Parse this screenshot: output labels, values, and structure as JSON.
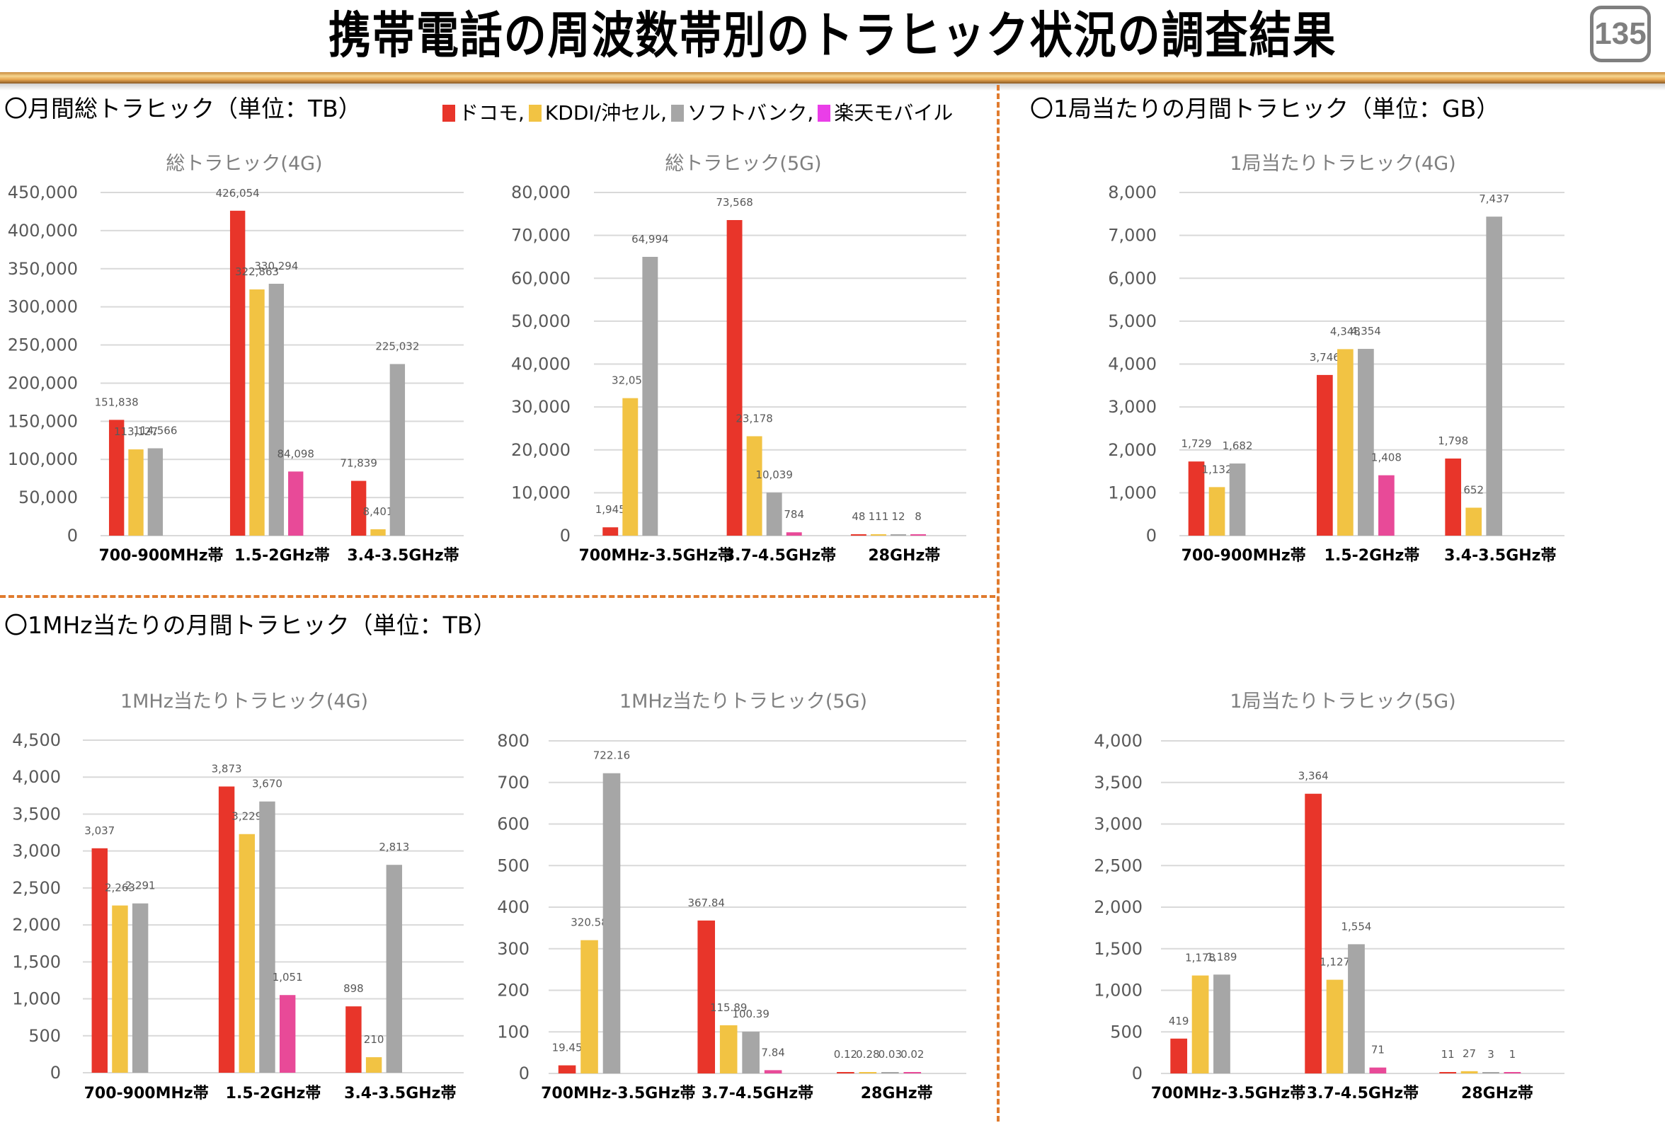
{
  "page": {
    "title": "携帯電話の周波数帯別のトラヒック状況の調査結果",
    "page_number": "135"
  },
  "sections": {
    "monthly_total": "〇月間総トラヒック（単位：TB）",
    "per_station": "〇1局当たりの月間トラヒック（単位：GB）",
    "per_mhz": "〇1MHz当たりの月間トラヒック（単位：TB）"
  },
  "legend": [
    {
      "label": "ドコモ,",
      "color": "#e8352a"
    },
    {
      "label": "KDDI/沖セル,",
      "color": "#f2c343"
    },
    {
      "label": "ソフトバンク,",
      "color": "#a6a6a6"
    },
    {
      "label": "楽天モバイル",
      "color": "#ea3ee8"
    }
  ],
  "series_colors": {
    "docomo": "#e8352a",
    "kddi": "#f2c343",
    "softbank": "#a6a6a6",
    "rakuten": "#e84a98"
  },
  "chart_data": [
    {
      "id": "total-4g",
      "type": "bar",
      "title": "総トラヒック(4G)",
      "xlabel": "",
      "ylabel": "",
      "categories": [
        "700-900MHz帯",
        "1.5-2GHz帯",
        "3.4-3.5GHz帯"
      ],
      "ylim": [
        0,
        450000
      ],
      "yticks": [
        0,
        50000,
        100000,
        150000,
        200000,
        250000,
        300000,
        350000,
        400000,
        450000
      ],
      "ytick_labels": [
        "0",
        "50,000",
        "100,000",
        "150,000",
        "200,000",
        "250,000",
        "300,000",
        "350,000",
        "400,000",
        "450,000"
      ],
      "grid": true,
      "series": [
        {
          "name": "ドコモ",
          "key": "docomo",
          "values": [
            151838,
            426054,
            71839
          ],
          "labels": [
            "151,838",
            "426,054",
            "71,839"
          ]
        },
        {
          "name": "KDDI/沖セル",
          "key": "kddi",
          "values": [
            113127,
            322863,
            8401
          ],
          "labels": [
            "113,127",
            "322,863",
            "8,401"
          ]
        },
        {
          "name": "ソフトバンク",
          "key": "softbank",
          "values": [
            114566,
            330294,
            225032
          ],
          "labels": [
            "114,566",
            "330,294",
            "225,032"
          ]
        },
        {
          "name": "楽天モバイル",
          "key": "rakuten",
          "values": [
            null,
            84098,
            null
          ],
          "labels": [
            null,
            "84,098",
            null
          ]
        }
      ]
    },
    {
      "id": "total-5g",
      "type": "bar",
      "title": "総トラヒック(5G)",
      "xlabel": "",
      "ylabel": "",
      "categories": [
        "700MHz-3.5GHz帯",
        "3.7-4.5GHz帯",
        "28GHz帯"
      ],
      "ylim": [
        0,
        80000
      ],
      "yticks": [
        0,
        10000,
        20000,
        30000,
        40000,
        50000,
        60000,
        70000,
        80000
      ],
      "ytick_labels": [
        "0",
        "10,000",
        "20,000",
        "30,000",
        "40,000",
        "50,000",
        "60,000",
        "70,000",
        "80,000"
      ],
      "grid": true,
      "series": [
        {
          "name": "ドコモ",
          "key": "docomo",
          "values": [
            1945,
            73568,
            48
          ],
          "labels": [
            "1,945",
            "73,568",
            "48"
          ]
        },
        {
          "name": "KDDI/沖セル",
          "key": "kddi",
          "values": [
            32058,
            23178,
            111
          ],
          "labels": [
            "32,058",
            "23,178",
            "111"
          ]
        },
        {
          "name": "ソフトバンク",
          "key": "softbank",
          "values": [
            64994,
            10039,
            12
          ],
          "labels": [
            "64,994",
            "10,039",
            "12"
          ]
        },
        {
          "name": "楽天モバイル",
          "key": "rakuten",
          "values": [
            null,
            784,
            8
          ],
          "labels": [
            null,
            "784",
            "8"
          ]
        }
      ]
    },
    {
      "id": "per-station-4g",
      "type": "bar",
      "title": "1局当たりトラヒック(4G)",
      "xlabel": "",
      "ylabel": "",
      "categories": [
        "700-900MHz帯",
        "1.5-2GHz帯",
        "3.4-3.5GHz帯"
      ],
      "ylim": [
        0,
        8000
      ],
      "yticks": [
        0,
        1000,
        2000,
        3000,
        4000,
        5000,
        6000,
        7000,
        8000
      ],
      "ytick_labels": [
        "0",
        "1,000",
        "2,000",
        "3,000",
        "4,000",
        "5,000",
        "6,000",
        "7,000",
        "8,000"
      ],
      "grid": true,
      "series": [
        {
          "name": "ドコモ",
          "key": "docomo",
          "values": [
            1729,
            3746,
            1798
          ],
          "labels": [
            "1,729",
            "3,746",
            "1,798"
          ]
        },
        {
          "name": "KDDI/沖セル",
          "key": "kddi",
          "values": [
            1132,
            4348,
            652
          ],
          "labels": [
            "1,132",
            "4,348",
            "652"
          ]
        },
        {
          "name": "ソフトバンク",
          "key": "softbank",
          "values": [
            1682,
            4354,
            7437
          ],
          "labels": [
            "1,682",
            "4,354",
            "7,437"
          ]
        },
        {
          "name": "楽天モバイル",
          "key": "rakuten",
          "values": [
            null,
            1408,
            null
          ],
          "labels": [
            null,
            "1,408",
            null
          ]
        }
      ]
    },
    {
      "id": "per-mhz-4g",
      "type": "bar",
      "title": "1MHz当たりトラヒック(4G)",
      "xlabel": "",
      "ylabel": "",
      "categories": [
        "700-900MHz帯",
        "1.5-2GHz帯",
        "3.4-3.5GHz帯"
      ],
      "ylim": [
        0,
        4500
      ],
      "yticks": [
        0,
        500,
        1000,
        1500,
        2000,
        2500,
        3000,
        3500,
        4000,
        4500
      ],
      "ytick_labels": [
        "0",
        "500",
        "1,000",
        "1,500",
        "2,000",
        "2,500",
        "3,000",
        "3,500",
        "4,000",
        "4,500"
      ],
      "grid": true,
      "series": [
        {
          "name": "ドコモ",
          "key": "docomo",
          "values": [
            3037,
            3873,
            898
          ],
          "labels": [
            "3,037",
            "3,873",
            "898"
          ]
        },
        {
          "name": "KDDI/沖セル",
          "key": "kddi",
          "values": [
            2263,
            3229,
            210
          ],
          "labels": [
            "2,263",
            "3,229",
            "210"
          ]
        },
        {
          "name": "ソフトバンク",
          "key": "softbank",
          "values": [
            2291,
            3670,
            2813
          ],
          "labels": [
            "2,291",
            "3,670",
            "2,813"
          ]
        },
        {
          "name": "楽天モバイル",
          "key": "rakuten",
          "values": [
            null,
            1051,
            null
          ],
          "labels": [
            null,
            "1,051",
            null
          ]
        }
      ]
    },
    {
      "id": "per-mhz-5g",
      "type": "bar",
      "title": "1MHz当たりトラヒック(5G)",
      "xlabel": "",
      "ylabel": "",
      "categories": [
        "700MHz-3.5GHz帯",
        "3.7-4.5GHz帯",
        "28GHz帯"
      ],
      "ylim": [
        0,
        800
      ],
      "yticks": [
        0,
        100,
        200,
        300,
        400,
        500,
        600,
        700,
        800
      ],
      "ytick_labels": [
        "0",
        "100",
        "200",
        "300",
        "400",
        "500",
        "600",
        "700",
        "800"
      ],
      "grid": true,
      "series": [
        {
          "name": "ドコモ",
          "key": "docomo",
          "values": [
            19.45,
            367.84,
            0.12
          ],
          "labels": [
            "19.45",
            "367.84",
            "0.12"
          ]
        },
        {
          "name": "KDDI/沖セル",
          "key": "kddi",
          "values": [
            320.58,
            115.89,
            0.28
          ],
          "labels": [
            "320.58",
            "115.89",
            "0.28"
          ]
        },
        {
          "name": "ソフトバンク",
          "key": "softbank",
          "values": [
            722.16,
            100.39,
            0.03
          ],
          "labels": [
            "722.16",
            "100.39",
            "0.03"
          ]
        },
        {
          "name": "楽天モバイル",
          "key": "rakuten",
          "values": [
            null,
            7.84,
            0.02
          ],
          "labels": [
            null,
            "7.84",
            "0.02"
          ]
        }
      ]
    },
    {
      "id": "per-station-5g",
      "type": "bar",
      "title": "1局当たりトラヒック(5G)",
      "xlabel": "",
      "ylabel": "",
      "categories": [
        "700MHz-3.5GHz帯",
        "3.7-4.5GHz帯",
        "28GHz帯"
      ],
      "ylim": [
        0,
        4000
      ],
      "yticks": [
        0,
        500,
        1000,
        1500,
        2000,
        2500,
        3000,
        3500,
        4000
      ],
      "ytick_labels": [
        "0",
        "500",
        "1,000",
        "1,500",
        "2,000",
        "2,500",
        "3,000",
        "3,500",
        "4,000"
      ],
      "grid": true,
      "series": [
        {
          "name": "ドコモ",
          "key": "docomo",
          "values": [
            419,
            3364,
            11
          ],
          "labels": [
            "419",
            "3,364",
            "11"
          ]
        },
        {
          "name": "KDDI/沖セル",
          "key": "kddi",
          "values": [
            1178,
            1127,
            27
          ],
          "labels": [
            "1,178",
            "1,127",
            "27"
          ]
        },
        {
          "name": "ソフトバンク",
          "key": "softbank",
          "values": [
            1189,
            1554,
            3
          ],
          "labels": [
            "1,189",
            "1,554",
            "3"
          ]
        },
        {
          "name": "楽天モバイル",
          "key": "rakuten",
          "values": [
            null,
            71,
            1
          ],
          "labels": [
            null,
            "71",
            "1"
          ]
        }
      ]
    }
  ]
}
